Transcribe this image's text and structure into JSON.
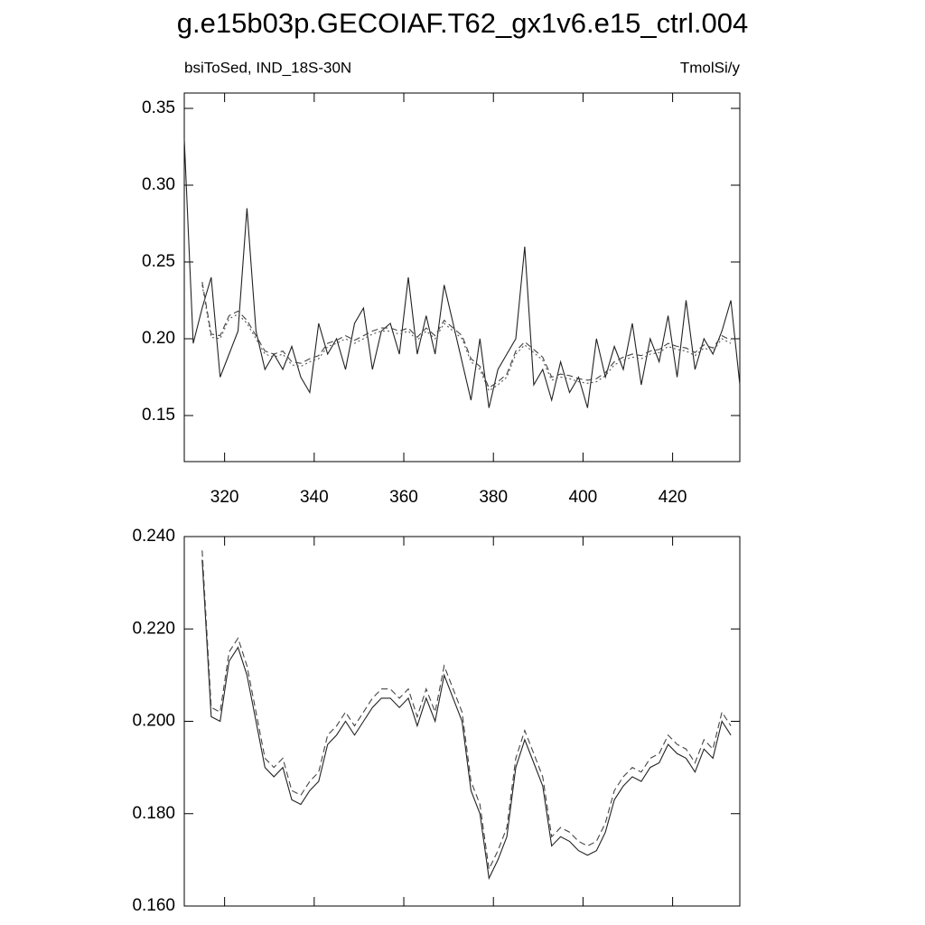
{
  "chart_data": [
    {
      "type": "line",
      "title": "g.e15b03p.GECOIAF.T62_gx1v6.e15_ctrl.004",
      "left_subtitle": "bsiToSed, IND_18S-30N",
      "right_subtitle": "TmolSi/y",
      "xlim": [
        311,
        435
      ],
      "ylim": [
        0.12,
        0.36
      ],
      "xticks": [
        320,
        340,
        360,
        380,
        400,
        420
      ],
      "xtick_labels": true,
      "yticks": [
        0.15,
        {
          "value": 0.2,
          "label": "0.20"
        },
        0.25,
        {
          "value": 0.3,
          "label": "0.30"
        },
        0.35
      ],
      "x": [
        311,
        313,
        315,
        317,
        319,
        321,
        323,
        325,
        327,
        329,
        331,
        333,
        335,
        337,
        339,
        341,
        343,
        345,
        347,
        349,
        351,
        353,
        355,
        357,
        359,
        361,
        363,
        365,
        367,
        369,
        371,
        373,
        375,
        377,
        379,
        381,
        383,
        385,
        387,
        389,
        391,
        393,
        395,
        397,
        399,
        401,
        403,
        405,
        407,
        409,
        411,
        413,
        415,
        417,
        419,
        421,
        423,
        425,
        427,
        429,
        431,
        433,
        435
      ],
      "series": [
        {
          "color": "#222222",
          "dash": "none",
          "values": [
            0.33,
            0.197,
            0.22,
            0.24,
            0.175,
            0.19,
            0.205,
            0.285,
            0.205,
            0.18,
            0.19,
            0.18,
            0.195,
            0.175,
            0.165,
            0.21,
            0.19,
            0.2,
            0.18,
            0.21,
            0.22,
            0.18,
            0.205,
            0.21,
            0.19,
            0.24,
            0.19,
            0.215,
            0.19,
            0.235,
            0.21,
            0.185,
            0.16,
            0.2,
            0.155,
            0.18,
            0.19,
            0.2,
            0.26,
            0.17,
            0.18,
            0.16,
            0.185,
            0.165,
            0.175,
            0.155,
            0.2,
            0.175,
            0.195,
            0.18,
            0.21,
            0.17,
            0.2,
            0.185,
            0.215,
            0.175,
            0.225,
            0.18,
            0.2,
            0.19,
            0.205,
            0.225,
            0.17
          ]
        },
        {
          "color": "#444444",
          "dash": "7 4",
          "values": [
            null,
            null,
            0.237,
            0.203,
            0.202,
            0.215,
            0.218,
            0.212,
            0.202,
            0.192,
            0.19,
            0.192,
            0.185,
            0.184,
            0.187,
            0.189,
            0.197,
            0.199,
            0.202,
            0.199,
            0.202,
            0.205,
            0.207,
            0.207,
            0.205,
            0.207,
            0.201,
            0.207,
            0.202,
            0.212,
            0.207,
            0.202,
            0.187,
            0.182,
            0.168,
            0.172,
            0.177,
            0.192,
            0.198,
            0.193,
            0.188,
            0.175,
            0.177,
            0.176,
            0.174,
            0.173,
            0.174,
            0.178,
            0.185,
            0.188,
            0.19,
            0.189,
            0.192,
            0.193,
            0.197,
            0.195,
            0.194,
            0.191,
            0.196,
            0.194,
            0.202,
            0.199,
            null
          ]
        },
        {
          "color": "#555555",
          "dash": "2 3",
          "values": [
            null,
            null,
            0.235,
            0.201,
            0.2,
            0.213,
            0.216,
            0.21,
            0.2,
            0.19,
            0.188,
            0.19,
            0.183,
            0.182,
            0.185,
            0.187,
            0.195,
            0.197,
            0.2,
            0.197,
            0.2,
            0.203,
            0.205,
            0.205,
            0.203,
            0.205,
            0.199,
            0.205,
            0.2,
            0.21,
            0.205,
            0.2,
            0.185,
            0.18,
            0.166,
            0.17,
            0.175,
            0.19,
            0.196,
            0.191,
            0.186,
            0.173,
            0.175,
            0.174,
            0.172,
            0.171,
            0.172,
            0.176,
            0.183,
            0.186,
            0.188,
            0.187,
            0.19,
            0.191,
            0.195,
            0.193,
            0.192,
            0.189,
            0.194,
            0.192,
            0.2,
            0.197,
            null
          ]
        }
      ]
    },
    {
      "type": "line",
      "xlim": [
        311,
        435
      ],
      "ylim": [
        0.16,
        0.24
      ],
      "xticks": [
        320,
        340,
        360,
        380,
        400,
        420
      ],
      "xtick_labels": false,
      "yticks": [
        {
          "value": 0.16,
          "label": "0.160"
        },
        {
          "value": 0.18,
          "label": "0.180"
        },
        {
          "value": 0.2,
          "label": "0.200"
        },
        {
          "value": 0.22,
          "label": "0.220"
        },
        {
          "value": 0.24,
          "label": "0.240"
        }
      ],
      "x": [
        311,
        313,
        315,
        317,
        319,
        321,
        323,
        325,
        327,
        329,
        331,
        333,
        335,
        337,
        339,
        341,
        343,
        345,
        347,
        349,
        351,
        353,
        355,
        357,
        359,
        361,
        363,
        365,
        367,
        369,
        371,
        373,
        375,
        377,
        379,
        381,
        383,
        385,
        387,
        389,
        391,
        393,
        395,
        397,
        399,
        401,
        403,
        405,
        407,
        409,
        411,
        413,
        415,
        417,
        419,
        421,
        423,
        425,
        427,
        429,
        431,
        433,
        435
      ],
      "series": [
        {
          "color": "#222222",
          "dash": "none",
          "values": [
            null,
            null,
            0.235,
            0.201,
            0.2,
            0.213,
            0.216,
            0.21,
            0.2,
            0.19,
            0.188,
            0.19,
            0.183,
            0.182,
            0.185,
            0.187,
            0.195,
            0.197,
            0.2,
            0.197,
            0.2,
            0.203,
            0.205,
            0.205,
            0.203,
            0.205,
            0.199,
            0.205,
            0.2,
            0.21,
            0.205,
            0.2,
            0.185,
            0.18,
            0.166,
            0.17,
            0.175,
            0.19,
            0.196,
            0.191,
            0.186,
            0.173,
            0.175,
            0.174,
            0.172,
            0.171,
            0.172,
            0.176,
            0.183,
            0.186,
            0.188,
            0.187,
            0.19,
            0.191,
            0.195,
            0.193,
            0.192,
            0.189,
            0.194,
            0.192,
            0.2,
            0.197,
            null
          ]
        },
        {
          "color": "#444444",
          "dash": "7 4",
          "values": [
            null,
            null,
            0.237,
            0.203,
            0.202,
            0.215,
            0.218,
            0.212,
            0.202,
            0.192,
            0.19,
            0.192,
            0.185,
            0.184,
            0.187,
            0.189,
            0.197,
            0.199,
            0.202,
            0.199,
            0.202,
            0.205,
            0.207,
            0.207,
            0.205,
            0.207,
            0.201,
            0.207,
            0.202,
            0.212,
            0.207,
            0.202,
            0.187,
            0.182,
            0.168,
            0.172,
            0.177,
            0.192,
            0.198,
            0.193,
            0.188,
            0.175,
            0.177,
            0.176,
            0.174,
            0.173,
            0.174,
            0.178,
            0.185,
            0.188,
            0.19,
            0.189,
            0.192,
            0.193,
            0.197,
            0.195,
            0.194,
            0.191,
            0.196,
            0.194,
            0.202,
            0.199,
            null
          ]
        }
      ]
    }
  ]
}
